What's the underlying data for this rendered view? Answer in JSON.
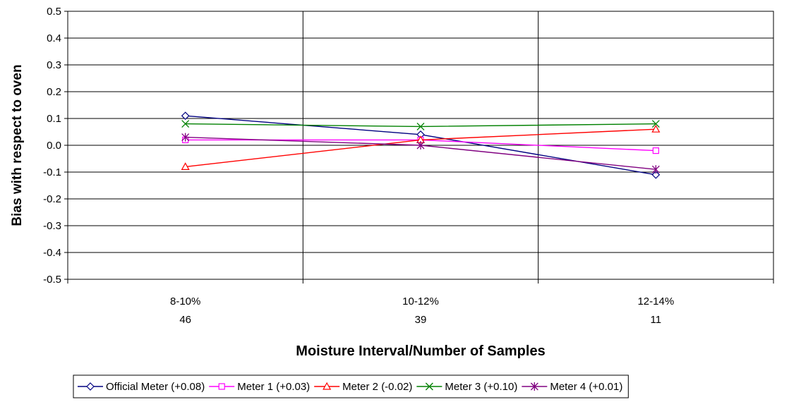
{
  "chart_data": {
    "type": "line",
    "title": "",
    "xlabel": "Moisture Interval/Number of Samples",
    "ylabel": "Bias with respect to oven",
    "categories": [
      {
        "line1": "8-10%",
        "line2": "46"
      },
      {
        "line1": "10-12%",
        "line2": "39"
      },
      {
        "line1": "12-14%",
        "line2": "11"
      }
    ],
    "ylim": [
      -0.5,
      0.5
    ],
    "ytick_step": 0.1,
    "yticks": [
      "0.5",
      "0.4",
      "0.3",
      "0.2",
      "0.1",
      "0.0",
      "-0.1",
      "-0.2",
      "-0.3",
      "-0.4",
      "-0.5"
    ],
    "grid": true,
    "legend_position": "bottom",
    "series": [
      {
        "name": "Official Meter (+0.08)",
        "color": "#000080",
        "marker": "diamond",
        "values": [
          0.11,
          0.04,
          -0.11
        ]
      },
      {
        "name": "Meter 1 (+0.03)",
        "color": "#ff00ff",
        "marker": "square",
        "values": [
          0.02,
          0.02,
          -0.02
        ]
      },
      {
        "name": "Meter 2 (-0.02)",
        "color": "#ff0000",
        "marker": "triangle",
        "values": [
          -0.08,
          0.02,
          0.06
        ]
      },
      {
        "name": "Meter 3 (+0.10)",
        "color": "#008000",
        "marker": "x",
        "values": [
          0.08,
          0.07,
          0.08
        ]
      },
      {
        "name": "Meter 4 (+0.01)",
        "color": "#800080",
        "marker": "star",
        "values": [
          0.03,
          0.0,
          -0.09
        ]
      }
    ]
  }
}
